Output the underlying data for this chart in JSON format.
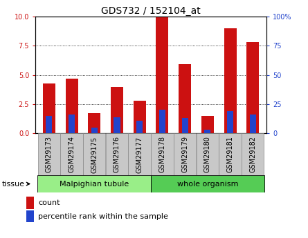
{
  "title": "GDS732 / 152104_at",
  "categories": [
    "GSM29173",
    "GSM29174",
    "GSM29175",
    "GSM29176",
    "GSM29177",
    "GSM29178",
    "GSM29179",
    "GSM29180",
    "GSM29181",
    "GSM29182"
  ],
  "count_values": [
    4.3,
    4.7,
    1.7,
    4.0,
    2.8,
    10.0,
    5.9,
    1.5,
    9.0,
    7.8
  ],
  "percentile_values": [
    15.0,
    16.0,
    5.0,
    14.0,
    11.0,
    20.0,
    13.0,
    3.0,
    19.0,
    16.0
  ],
  "red_color": "#cc1111",
  "blue_color": "#2244cc",
  "bar_width": 0.55,
  "blue_bar_width": 0.28,
  "ylim_left": [
    0,
    10
  ],
  "ylim_right": [
    0,
    100
  ],
  "yticks_left": [
    0,
    2.5,
    5.0,
    7.5,
    10.0
  ],
  "yticks_right": [
    0,
    25,
    50,
    75,
    100
  ],
  "tissue_groups": [
    {
      "label": "Malpighian tubule",
      "indices": [
        0,
        1,
        2,
        3,
        4
      ],
      "color": "#99ee88"
    },
    {
      "label": "whole organism",
      "indices": [
        5,
        6,
        7,
        8,
        9
      ],
      "color": "#55cc55"
    }
  ],
  "tissue_label": "tissue",
  "legend_count": "count",
  "legend_percentile": "percentile rank within the sample",
  "bg_color": "#ffffff",
  "tick_bg_color": "#c8c8c8",
  "tick_border_color": "#888888",
  "title_fontsize": 10,
  "tick_fontsize": 7,
  "legend_fontsize": 8
}
